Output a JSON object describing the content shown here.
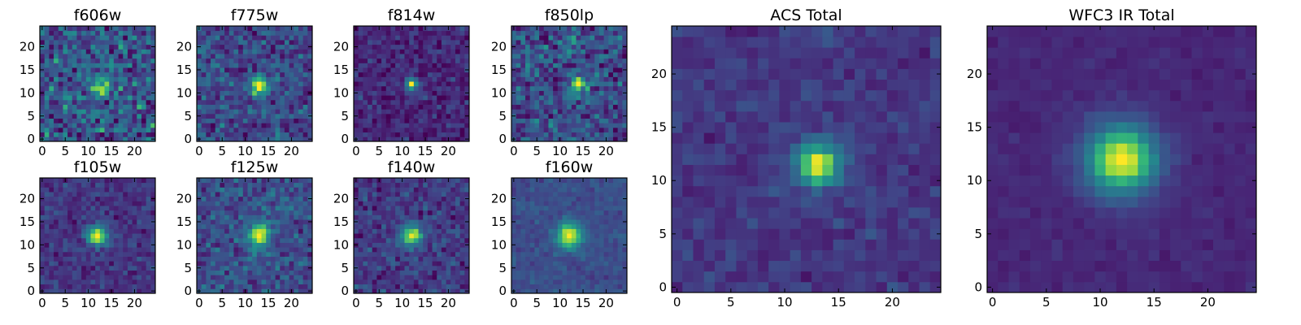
{
  "chart_data": [
    {
      "type": "heatmap",
      "title": "f606w",
      "xticks": [
        0,
        5,
        10,
        15,
        20
      ],
      "yticks": [
        0,
        5,
        10,
        15,
        20
      ],
      "xlim": [
        0,
        24
      ],
      "ylim": [
        0,
        24
      ],
      "grid_size": 25,
      "peak": [
        12.5,
        11
      ],
      "sigma": 1.3,
      "noise": 0.55,
      "background": 0.33,
      "colormap": "viridis"
    },
    {
      "type": "heatmap",
      "title": "f775w",
      "xticks": [
        0,
        5,
        10,
        15,
        20
      ],
      "yticks": [
        0,
        5,
        10,
        15,
        20
      ],
      "xlim": [
        0,
        24
      ],
      "ylim": [
        0,
        24
      ],
      "grid_size": 25,
      "peak": [
        13,
        11.5
      ],
      "sigma": 1.4,
      "noise": 0.4,
      "background": 0.28,
      "colormap": "viridis"
    },
    {
      "type": "heatmap",
      "title": "f814w",
      "xticks": [
        0,
        5,
        10,
        15,
        20
      ],
      "yticks": [
        0,
        5,
        10,
        15,
        20
      ],
      "xlim": [
        0,
        24
      ],
      "ylim": [
        0,
        24
      ],
      "grid_size": 25,
      "peak": [
        12,
        12
      ],
      "sigma": 0.9,
      "noise": 0.28,
      "background": 0.14,
      "colormap": "viridis"
    },
    {
      "type": "heatmap",
      "title": "f850lp",
      "xticks": [
        0,
        5,
        10,
        15,
        20
      ],
      "yticks": [
        0,
        5,
        10,
        15,
        20
      ],
      "xlim": [
        0,
        24
      ],
      "ylim": [
        0,
        24
      ],
      "grid_size": 25,
      "peak": [
        14,
        12
      ],
      "sigma": 1.2,
      "noise": 0.5,
      "background": 0.3,
      "colormap": "viridis"
    },
    {
      "type": "heatmap",
      "title": "f105w",
      "xticks": [
        0,
        5,
        10,
        15,
        20
      ],
      "yticks": [
        0,
        5,
        10,
        15,
        20
      ],
      "xlim": [
        0,
        24
      ],
      "ylim": [
        0,
        24
      ],
      "grid_size": 25,
      "peak": [
        12,
        12
      ],
      "sigma": 1.6,
      "noise": 0.25,
      "background": 0.2,
      "colormap": "viridis"
    },
    {
      "type": "heatmap",
      "title": "f125w",
      "xticks": [
        0,
        5,
        10,
        15,
        20
      ],
      "yticks": [
        0,
        5,
        10,
        15,
        20
      ],
      "xlim": [
        0,
        24
      ],
      "ylim": [
        0,
        24
      ],
      "grid_size": 25,
      "peak": [
        13,
        12
      ],
      "sigma": 1.8,
      "noise": 0.35,
      "background": 0.3,
      "colormap": "viridis"
    },
    {
      "type": "heatmap",
      "title": "f140w",
      "xticks": [
        0,
        5,
        10,
        15,
        20
      ],
      "yticks": [
        0,
        5,
        10,
        15,
        20
      ],
      "xlim": [
        0,
        24
      ],
      "ylim": [
        0,
        24
      ],
      "grid_size": 25,
      "peak": [
        12,
        12
      ],
      "sigma": 1.6,
      "noise": 0.3,
      "background": 0.22,
      "colormap": "viridis"
    },
    {
      "type": "heatmap",
      "title": "f160w",
      "xticks": [
        0,
        5,
        10,
        15,
        20
      ],
      "yticks": [
        0,
        5,
        10,
        15,
        20
      ],
      "xlim": [
        0,
        24
      ],
      "ylim": [
        0,
        24
      ],
      "grid_size": 25,
      "peak": [
        12,
        12
      ],
      "sigma": 2.0,
      "noise": 0.15,
      "background": 0.3,
      "colormap": "viridis"
    },
    {
      "type": "heatmap",
      "title": "ACS Total",
      "xticks": [
        0,
        5,
        10,
        15,
        20
      ],
      "yticks": [
        0,
        5,
        10,
        15,
        20
      ],
      "xlim": [
        0,
        24
      ],
      "ylim": [
        0,
        24
      ],
      "grid_size": 25,
      "peak": [
        13,
        11.5
      ],
      "sigma": 1.5,
      "noise": 0.18,
      "background": 0.2,
      "colormap": "viridis"
    },
    {
      "type": "heatmap",
      "title": "WFC3 IR Total",
      "xticks": [
        0,
        5,
        10,
        15,
        20
      ],
      "yticks": [
        0,
        5,
        10,
        15,
        20
      ],
      "xlim": [
        0,
        24
      ],
      "ylim": [
        0,
        24
      ],
      "grid_size": 25,
      "peak": [
        12,
        12
      ],
      "sigma": 2.4,
      "noise": 0.08,
      "background": 0.14,
      "colormap": "viridis"
    }
  ]
}
